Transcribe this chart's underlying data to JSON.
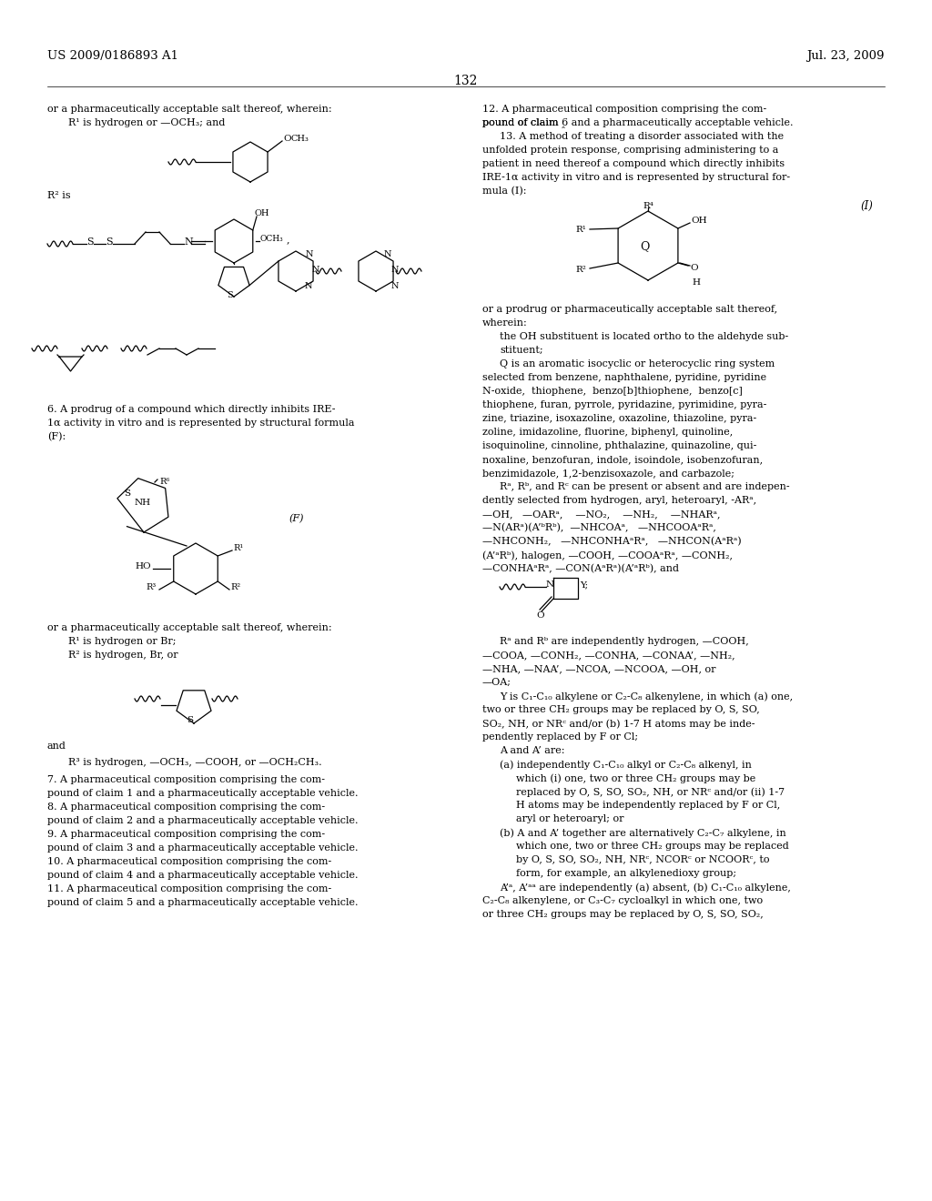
{
  "bg": "#ffffff",
  "header_left": "US 2009/0186893 A1",
  "header_right": "Jul. 23, 2009",
  "page_num": "132"
}
